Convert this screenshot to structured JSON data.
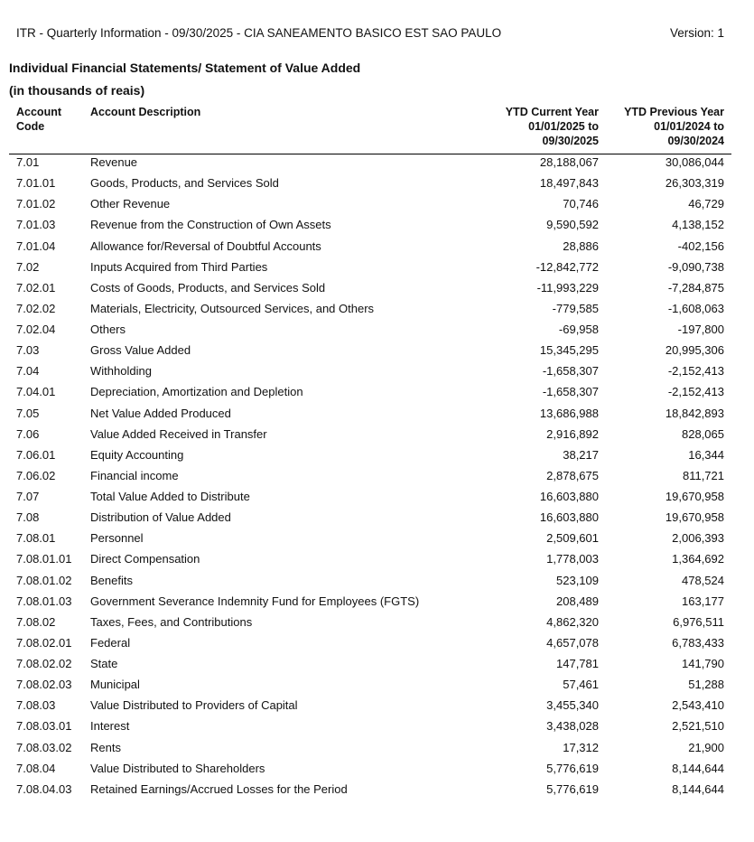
{
  "header": {
    "title": "ITR - Quarterly Information - 09/30/2025 - CIA SANEAMENTO BASICO EST SAO PAULO",
    "version": "Version: 1"
  },
  "statement": {
    "title": "Individual Financial Statements/ Statement of Value Added",
    "units": "(in thousands of reais)"
  },
  "columns": {
    "code": "Account Code",
    "description": "Account Description",
    "current": "YTD Current Year 01/01/2025 to 09/30/2025",
    "previous": "YTD Previous Year 01/01/2024 to 09/30/2024"
  },
  "rows": [
    {
      "code": "7.01",
      "desc": "Revenue",
      "cur": "28,188,067",
      "prev": "30,086,044"
    },
    {
      "code": "7.01.01",
      "desc": "Goods, Products, and Services Sold",
      "cur": "18,497,843",
      "prev": "26,303,319"
    },
    {
      "code": "7.01.02",
      "desc": "Other Revenue",
      "cur": "70,746",
      "prev": "46,729"
    },
    {
      "code": "7.01.03",
      "desc": "Revenue from the Construction of Own Assets",
      "cur": "9,590,592",
      "prev": "4,138,152"
    },
    {
      "code": "7.01.04",
      "desc": "Allowance for/Reversal of Doubtful Accounts",
      "cur": "28,886",
      "prev": "-402,156"
    },
    {
      "code": "7.02",
      "desc": "Inputs Acquired from Third Parties",
      "cur": "-12,842,772",
      "prev": "-9,090,738"
    },
    {
      "code": "7.02.01",
      "desc": "Costs of Goods, Products, and Services Sold",
      "cur": "-11,993,229",
      "prev": "-7,284,875"
    },
    {
      "code": "7.02.02",
      "desc": "Materials, Electricity, Outsourced Services, and Others",
      "cur": "-779,585",
      "prev": "-1,608,063"
    },
    {
      "code": "7.02.04",
      "desc": "Others",
      "cur": "-69,958",
      "prev": "-197,800"
    },
    {
      "code": "7.03",
      "desc": "Gross Value Added",
      "cur": "15,345,295",
      "prev": "20,995,306"
    },
    {
      "code": "7.04",
      "desc": "Withholding",
      "cur": "-1,658,307",
      "prev": "-2,152,413"
    },
    {
      "code": "7.04.01",
      "desc": "Depreciation, Amortization and Depletion",
      "cur": "-1,658,307",
      "prev": "-2,152,413"
    },
    {
      "code": "7.05",
      "desc": "Net Value Added Produced",
      "cur": "13,686,988",
      "prev": "18,842,893"
    },
    {
      "code": "7.06",
      "desc": "Value Added Received in Transfer",
      "cur": "2,916,892",
      "prev": "828,065"
    },
    {
      "code": "7.06.01",
      "desc": "Equity Accounting",
      "cur": "38,217",
      "prev": "16,344"
    },
    {
      "code": "7.06.02",
      "desc": "Financial income",
      "cur": "2,878,675",
      "prev": "811,721"
    },
    {
      "code": "7.07",
      "desc": "Total Value Added to Distribute",
      "cur": "16,603,880",
      "prev": "19,670,958"
    },
    {
      "code": "7.08",
      "desc": "Distribution of Value Added",
      "cur": "16,603,880",
      "prev": "19,670,958"
    },
    {
      "code": "7.08.01",
      "desc": "Personnel",
      "cur": "2,509,601",
      "prev": "2,006,393"
    },
    {
      "code": "7.08.01.01",
      "desc": "Direct Compensation",
      "cur": "1,778,003",
      "prev": "1,364,692"
    },
    {
      "code": "7.08.01.02",
      "desc": "Benefits",
      "cur": "523,109",
      "prev": "478,524"
    },
    {
      "code": "7.08.01.03",
      "desc": "Government Severance Indemnity Fund for Employees (FGTS)",
      "cur": "208,489",
      "prev": "163,177"
    },
    {
      "code": "7.08.02",
      "desc": "Taxes, Fees, and Contributions",
      "cur": "4,862,320",
      "prev": "6,976,511"
    },
    {
      "code": "7.08.02.01",
      "desc": "Federal",
      "cur": "4,657,078",
      "prev": "6,783,433"
    },
    {
      "code": "7.08.02.02",
      "desc": "State",
      "cur": "147,781",
      "prev": "141,790"
    },
    {
      "code": "7.08.02.03",
      "desc": "Municipal",
      "cur": "57,461",
      "prev": "51,288"
    },
    {
      "code": "7.08.03",
      "desc": "Value Distributed to Providers of Capital",
      "cur": "3,455,340",
      "prev": "2,543,410"
    },
    {
      "code": "7.08.03.01",
      "desc": "Interest",
      "cur": "3,438,028",
      "prev": "2,521,510"
    },
    {
      "code": "7.08.03.02",
      "desc": "Rents",
      "cur": "17,312",
      "prev": "21,900"
    },
    {
      "code": "7.08.04",
      "desc": "Value Distributed to Shareholders",
      "cur": "5,776,619",
      "prev": "8,144,644"
    },
    {
      "code": "7.08.04.03",
      "desc": "Retained Earnings/Accrued Losses for the Period",
      "cur": "5,776,619",
      "prev": "8,144,644"
    }
  ]
}
